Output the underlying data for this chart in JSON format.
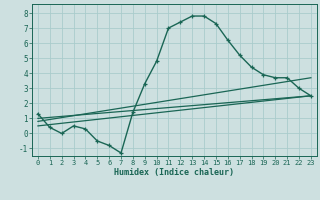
{
  "xlabel": "Humidex (Indice chaleur)",
  "ylabel": "",
  "xlim": [
    -0.5,
    23.5
  ],
  "ylim": [
    -1.5,
    8.6
  ],
  "xticks": [
    0,
    1,
    2,
    3,
    4,
    5,
    6,
    7,
    8,
    9,
    10,
    11,
    12,
    13,
    14,
    15,
    16,
    17,
    18,
    19,
    20,
    21,
    22,
    23
  ],
  "yticks": [
    -1,
    0,
    1,
    2,
    3,
    4,
    5,
    6,
    7,
    8
  ],
  "background_color": "#cde0e0",
  "grid_color": "#aacccc",
  "line_color": "#1a6655",
  "line1_x": [
    0,
    1,
    2,
    3,
    4,
    5,
    6,
    7,
    8,
    9,
    10,
    11,
    12,
    13,
    14,
    15,
    16,
    17,
    18,
    19,
    20,
    21,
    22,
    23
  ],
  "line1_y": [
    1.3,
    0.4,
    0.0,
    0.5,
    0.3,
    -0.5,
    -0.8,
    -1.3,
    1.4,
    3.3,
    4.8,
    7.0,
    7.4,
    7.8,
    7.8,
    7.3,
    6.2,
    5.2,
    4.4,
    3.9,
    3.7,
    3.7,
    3.0,
    2.5
  ],
  "line2_x": [
    0,
    23
  ],
  "line2_y": [
    0.5,
    2.5
  ],
  "line3_x": [
    0,
    23
  ],
  "line3_y": [
    0.8,
    3.7
  ],
  "line4_x": [
    0,
    23
  ],
  "line4_y": [
    1.0,
    2.5
  ],
  "figsize": [
    3.2,
    2.0
  ],
  "dpi": 100
}
